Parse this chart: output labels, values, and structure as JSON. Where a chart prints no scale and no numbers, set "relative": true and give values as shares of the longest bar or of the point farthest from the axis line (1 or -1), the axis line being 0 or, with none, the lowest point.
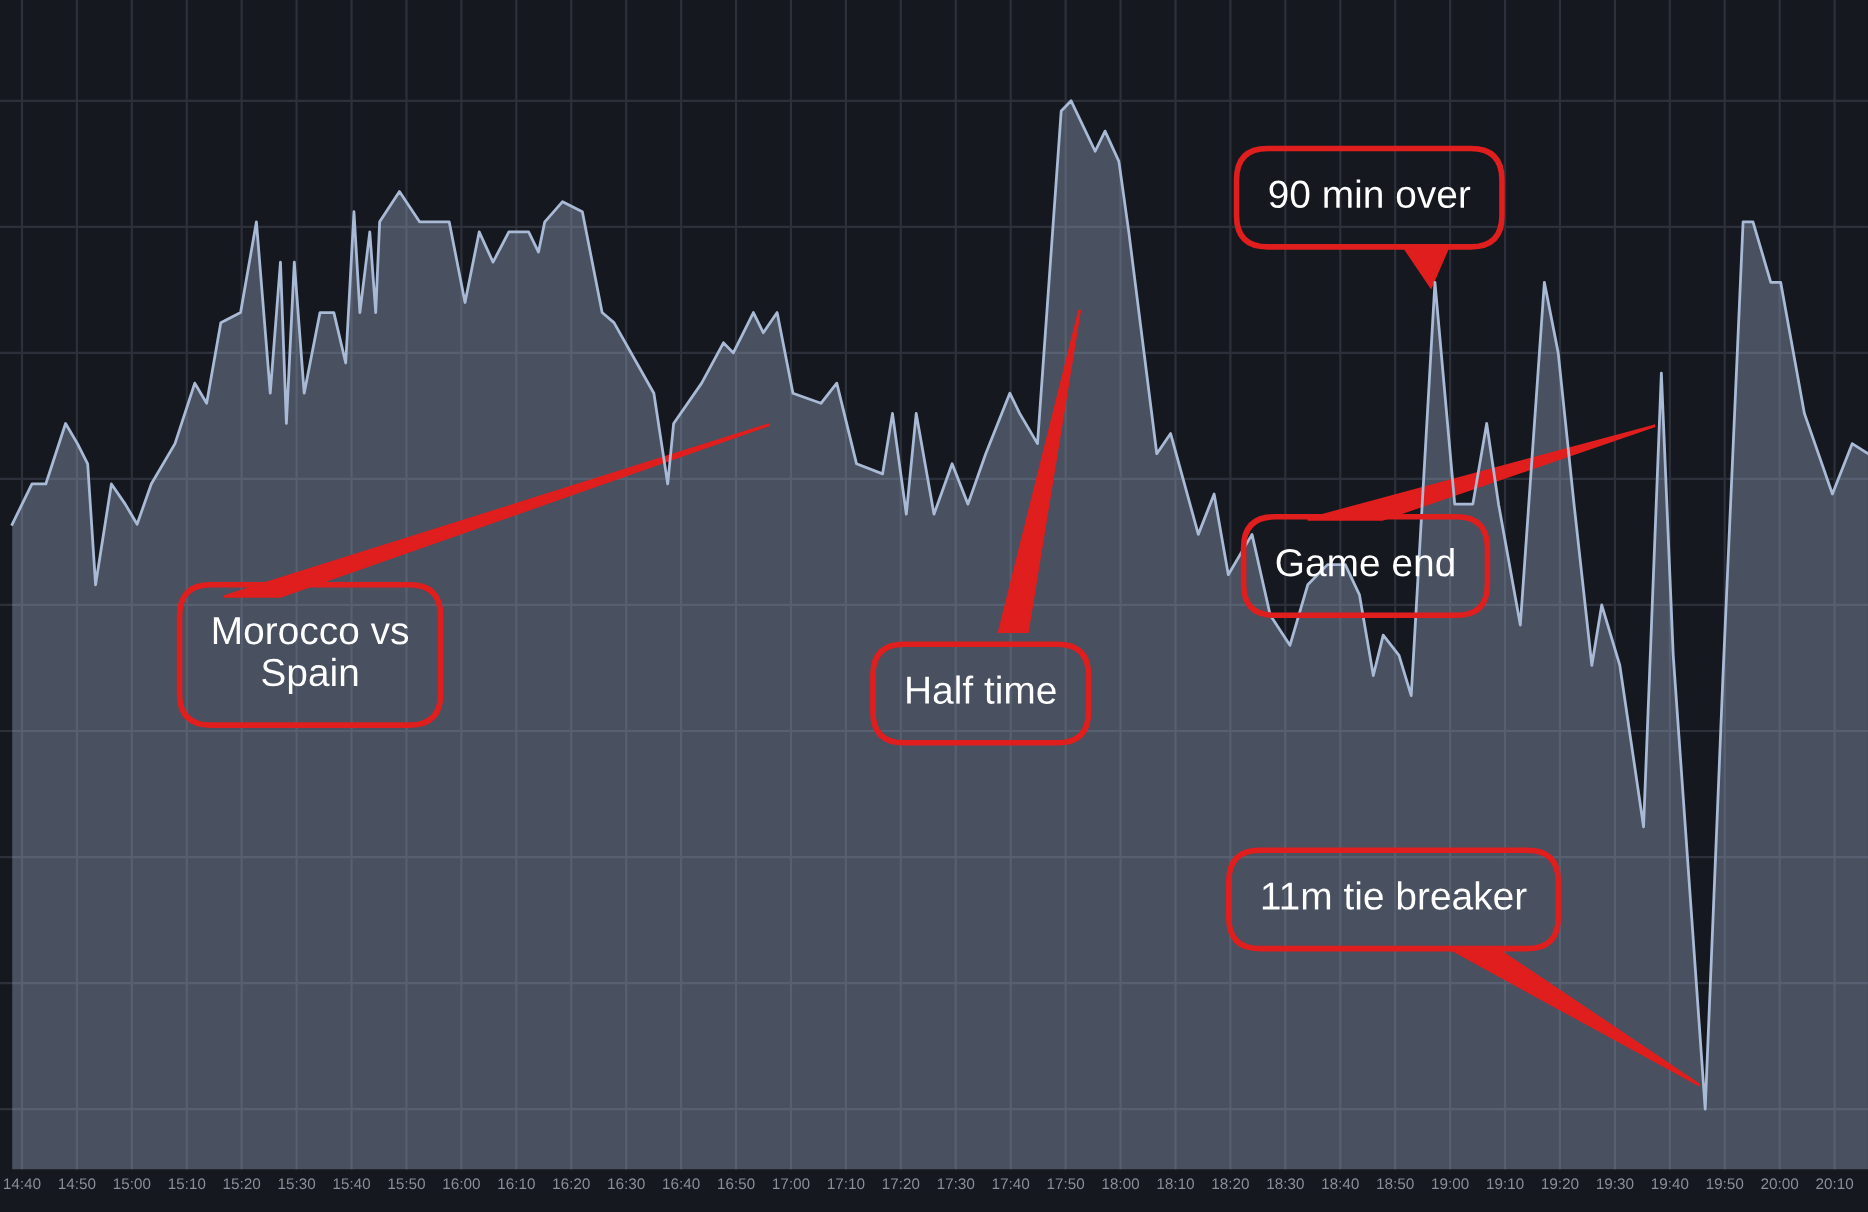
{
  "chart_data": {
    "type": "area",
    "relative": true,
    "grid": true,
    "legend": false,
    "xlim": [
      14.6,
      20.268
    ],
    "xticks": [
      {
        "value": 14.6667,
        "label": "14:40"
      },
      {
        "value": 14.8333,
        "label": "14:50"
      },
      {
        "value": 15,
        "label": "15:00"
      },
      {
        "value": 15.1667,
        "label": "15:10"
      },
      {
        "value": 15.3333,
        "label": "15:20"
      },
      {
        "value": 15.5,
        "label": "15:30"
      },
      {
        "value": 15.6667,
        "label": "15:40"
      },
      {
        "value": 15.8333,
        "label": "15:50"
      },
      {
        "value": 16,
        "label": "16:00"
      },
      {
        "value": 16.1667,
        "label": "16:10"
      },
      {
        "value": 16.3333,
        "label": "16:20"
      },
      {
        "value": 16.5,
        "label": "16:30"
      },
      {
        "value": 16.6667,
        "label": "16:40"
      },
      {
        "value": 16.8333,
        "label": "16:50"
      },
      {
        "value": 17,
        "label": "17:00"
      },
      {
        "value": 17.1667,
        "label": "17:10"
      },
      {
        "value": 17.3333,
        "label": "17:20"
      },
      {
        "value": 17.5,
        "label": "17:30"
      },
      {
        "value": 17.6667,
        "label": "17:40"
      },
      {
        "value": 17.8333,
        "label": "17:50"
      },
      {
        "value": 18,
        "label": "18:00"
      },
      {
        "value": 18.1667,
        "label": "18:10"
      },
      {
        "value": 18.3333,
        "label": "18:20"
      },
      {
        "value": 18.5,
        "label": "18:30"
      },
      {
        "value": 18.6667,
        "label": "18:40"
      },
      {
        "value": 18.8333,
        "label": "18:50"
      },
      {
        "value": 19,
        "label": "19:00"
      },
      {
        "value": 19.1667,
        "label": "19:10"
      },
      {
        "value": 19.3333,
        "label": "19:20"
      },
      {
        "value": 19.5,
        "label": "19:30"
      },
      {
        "value": 19.6667,
        "label": "19:40"
      },
      {
        "value": 19.8333,
        "label": "19:50"
      },
      {
        "value": 20,
        "label": "20:00"
      },
      {
        "value": 20.1667,
        "label": "20:10"
      }
    ],
    "x": [
      14.637,
      14.697,
      14.739,
      14.799,
      14.835,
      14.866,
      14.89,
      14.938,
      14.98,
      15.016,
      15.059,
      15.131,
      15.191,
      15.227,
      15.27,
      15.33,
      15.378,
      15.42,
      15.451,
      15.469,
      15.493,
      15.523,
      15.571,
      15.613,
      15.649,
      15.674,
      15.692,
      15.722,
      15.74,
      15.752,
      15.812,
      15.873,
      15.963,
      16.011,
      16.054,
      16.096,
      16.144,
      16.204,
      16.234,
      16.253,
      16.307,
      16.367,
      16.427,
      16.463,
      16.584,
      16.626,
      16.644,
      16.729,
      16.795,
      16.825,
      16.886,
      16.916,
      16.958,
      17.006,
      17.091,
      17.139,
      17.199,
      17.278,
      17.308,
      17.35,
      17.38,
      17.434,
      17.489,
      17.537,
      17.591,
      17.664,
      17.694,
      17.748,
      17.82,
      17.85,
      17.923,
      17.953,
      17.995,
      18.025,
      18.11,
      18.152,
      18.236,
      18.284,
      18.327,
      18.399,
      18.454,
      18.514,
      18.568,
      18.628,
      18.682,
      18.725,
      18.767,
      18.797,
      18.845,
      18.882,
      18.954,
      19.014,
      19.069,
      19.111,
      19.147,
      19.213,
      19.286,
      19.328,
      19.376,
      19.43,
      19.46,
      19.515,
      19.587,
      19.641,
      19.677,
      19.774,
      19.828,
      19.889,
      19.919,
      19.973,
      20.003,
      20.075,
      20.16,
      20.22,
      20.268
    ],
    "series": [
      {
        "color": "#a9bad6",
        "values": [
          0.58,
          0.62,
          0.62,
          0.68,
          0.66,
          0.64,
          0.52,
          0.62,
          0.6,
          0.58,
          0.62,
          0.66,
          0.72,
          0.7,
          0.78,
          0.79,
          0.88,
          0.71,
          0.84,
          0.68,
          0.84,
          0.71,
          0.79,
          0.79,
          0.74,
          0.89,
          0.79,
          0.87,
          0.79,
          0.88,
          0.91,
          0.88,
          0.88,
          0.8,
          0.87,
          0.84,
          0.87,
          0.87,
          0.85,
          0.88,
          0.9,
          0.89,
          0.79,
          0.78,
          0.71,
          0.62,
          0.68,
          0.72,
          0.76,
          0.75,
          0.79,
          0.77,
          0.79,
          0.71,
          0.7,
          0.72,
          0.64,
          0.63,
          0.69,
          0.59,
          0.69,
          0.59,
          0.64,
          0.6,
          0.65,
          0.71,
          0.69,
          0.66,
          0.99,
          1.0,
          0.95,
          0.97,
          0.94,
          0.87,
          0.65,
          0.67,
          0.57,
          0.61,
          0.53,
          0.57,
          0.49,
          0.46,
          0.52,
          0.54,
          0.54,
          0.51,
          0.43,
          0.47,
          0.45,
          0.41,
          0.82,
          0.6,
          0.6,
          0.68,
          0.6,
          0.48,
          0.82,
          0.75,
          0.6,
          0.44,
          0.5,
          0.44,
          0.28,
          0.73,
          0.45,
          0,
          0.43,
          0.88,
          0.88,
          0.82,
          0.82,
          0.69,
          0.61,
          0.66,
          0.65
        ]
      }
    ],
    "annotations": [
      "Morocco vs\nSpain",
      "Half time",
      "90 min over",
      "Game end",
      "11m tie breaker"
    ]
  }
}
